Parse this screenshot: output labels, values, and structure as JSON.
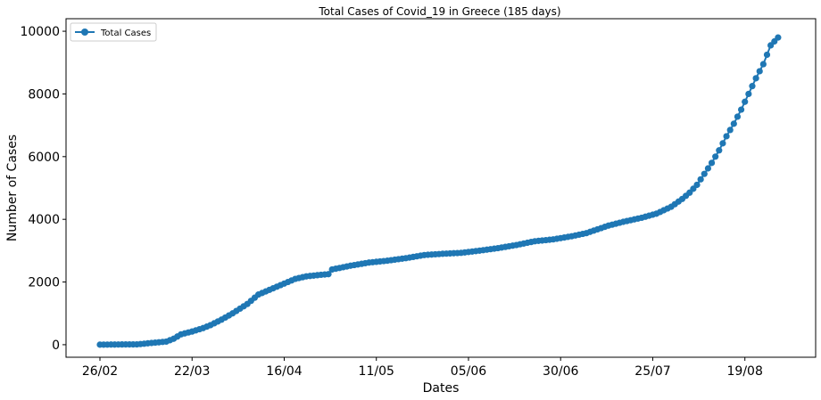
{
  "chart_data": {
    "type": "line",
    "title": "Total Cases of Covid_19 in Greece (185 days)",
    "xlabel": "Dates",
    "ylabel": "Number of Cases",
    "x_tick_labels": [
      "26/02",
      "22/03",
      "16/04",
      "11/05",
      "05/06",
      "30/06",
      "25/07",
      "19/08"
    ],
    "x_tick_day_index": [
      0,
      25,
      50,
      75,
      100,
      125,
      150,
      175
    ],
    "y_ticks": [
      0,
      2000,
      4000,
      6000,
      8000,
      10000
    ],
    "ylim": [
      -400,
      10400
    ],
    "xlim": [
      -9.2,
      194.2
    ],
    "grid": false,
    "legend": {
      "placement": "top-left",
      "entries": [
        "Total Cases"
      ]
    },
    "colors": {
      "series": "#1f77b4"
    },
    "series": [
      {
        "name": "Total Cases",
        "marker": "circle",
        "keypoints": [
          [
            0,
            1
          ],
          [
            5,
            7
          ],
          [
            10,
            10
          ],
          [
            15,
            66
          ],
          [
            18,
            99
          ],
          [
            20,
            190
          ],
          [
            22,
            330
          ],
          [
            25,
            420
          ],
          [
            28,
            530
          ],
          [
            30,
            624
          ],
          [
            33,
            800
          ],
          [
            36,
            1000
          ],
          [
            40,
            1300
          ],
          [
            43,
            1600
          ],
          [
            46,
            1750
          ],
          [
            50,
            1950
          ],
          [
            53,
            2100
          ],
          [
            56,
            2180
          ],
          [
            60,
            2230
          ],
          [
            62,
            2250
          ],
          [
            63,
            2400
          ],
          [
            68,
            2520
          ],
          [
            73,
            2620
          ],
          [
            78,
            2680
          ],
          [
            83,
            2760
          ],
          [
            88,
            2860
          ],
          [
            93,
            2900
          ],
          [
            98,
            2930
          ],
          [
            103,
            3000
          ],
          [
            108,
            3080
          ],
          [
            113,
            3180
          ],
          [
            118,
            3300
          ],
          [
            123,
            3360
          ],
          [
            128,
            3460
          ],
          [
            132,
            3560
          ],
          [
            135,
            3680
          ],
          [
            138,
            3800
          ],
          [
            142,
            3920
          ],
          [
            147,
            4050
          ],
          [
            151,
            4180
          ],
          [
            155,
            4400
          ],
          [
            158,
            4650
          ],
          [
            160,
            4850
          ],
          [
            162,
            5100
          ],
          [
            164,
            5450
          ],
          [
            166,
            5800
          ],
          [
            168,
            6200
          ],
          [
            170,
            6650
          ],
          [
            172,
            7050
          ],
          [
            174,
            7500
          ],
          [
            176,
            8000
          ],
          [
            178,
            8500
          ],
          [
            180,
            8950
          ],
          [
            182,
            9550
          ],
          [
            184,
            9800
          ]
        ]
      }
    ]
  }
}
